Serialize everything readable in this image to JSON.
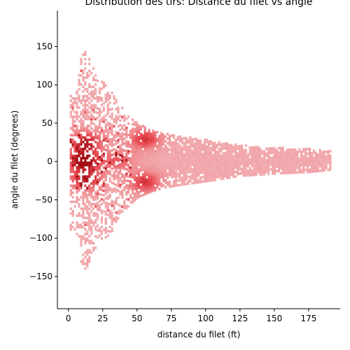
{
  "chart_data": {
    "type": "heatmap",
    "title": "Distribution des tirs: Distance du filet vs angle",
    "xlabel": "distance du filet (ft)",
    "ylabel": "angle du filet (degrees)",
    "xlim": [
      -8,
      198
    ],
    "ylim": [
      -192,
      197
    ],
    "x_ticks": [
      0,
      25,
      50,
      75,
      100,
      125,
      150,
      175
    ],
    "y_ticks": [
      150,
      100,
      50,
      0,
      -50,
      -100,
      -150
    ],
    "x_tick_labels": [
      "0",
      "25",
      "50",
      "75",
      "100",
      "125",
      "150",
      "175"
    ],
    "y_tick_labels": [
      "150",
      "100",
      "50",
      "0",
      "−50",
      "−100",
      "−150"
    ],
    "grid": false,
    "legend": "none",
    "colors": {
      "base": "#f2b5b8",
      "mid": "#f08a8f",
      "dense": "#e8474f",
      "darkest": "#a50f15"
    },
    "distance_range": [
      1,
      190
    ],
    "angle_envelope": [
      {
        "distance": 5,
        "max_angle": 90
      },
      {
        "distance": 10,
        "max_angle": 150
      },
      {
        "distance": 20,
        "max_angle": 110
      },
      {
        "distance": 30,
        "max_angle": 95
      },
      {
        "distance": 40,
        "max_angle": 65
      },
      {
        "distance": 50,
        "max_angle": 48
      },
      {
        "distance": 60,
        "max_angle": 40
      },
      {
        "distance": 70,
        "max_angle": 35
      },
      {
        "distance": 80,
        "max_angle": 32
      },
      {
        "distance": 100,
        "max_angle": 27
      },
      {
        "distance": 125,
        "max_angle": 20
      },
      {
        "distance": 150,
        "max_angle": 17
      },
      {
        "distance": 175,
        "max_angle": 15
      },
      {
        "distance": 190,
        "max_angle": 12
      }
    ],
    "hot_spots": [
      {
        "distance": 10,
        "angle": 0,
        "intensity": 1.0
      },
      {
        "distance": 12,
        "angle": 25,
        "intensity": 0.8
      },
      {
        "distance": 12,
        "angle": -25,
        "intensity": 0.8
      },
      {
        "distance": 55,
        "angle": 28,
        "intensity": 0.7
      },
      {
        "distance": 55,
        "angle": -28,
        "intensity": 0.7
      },
      {
        "distance": 35,
        "angle": 0,
        "intensity": 0.5
      }
    ]
  }
}
